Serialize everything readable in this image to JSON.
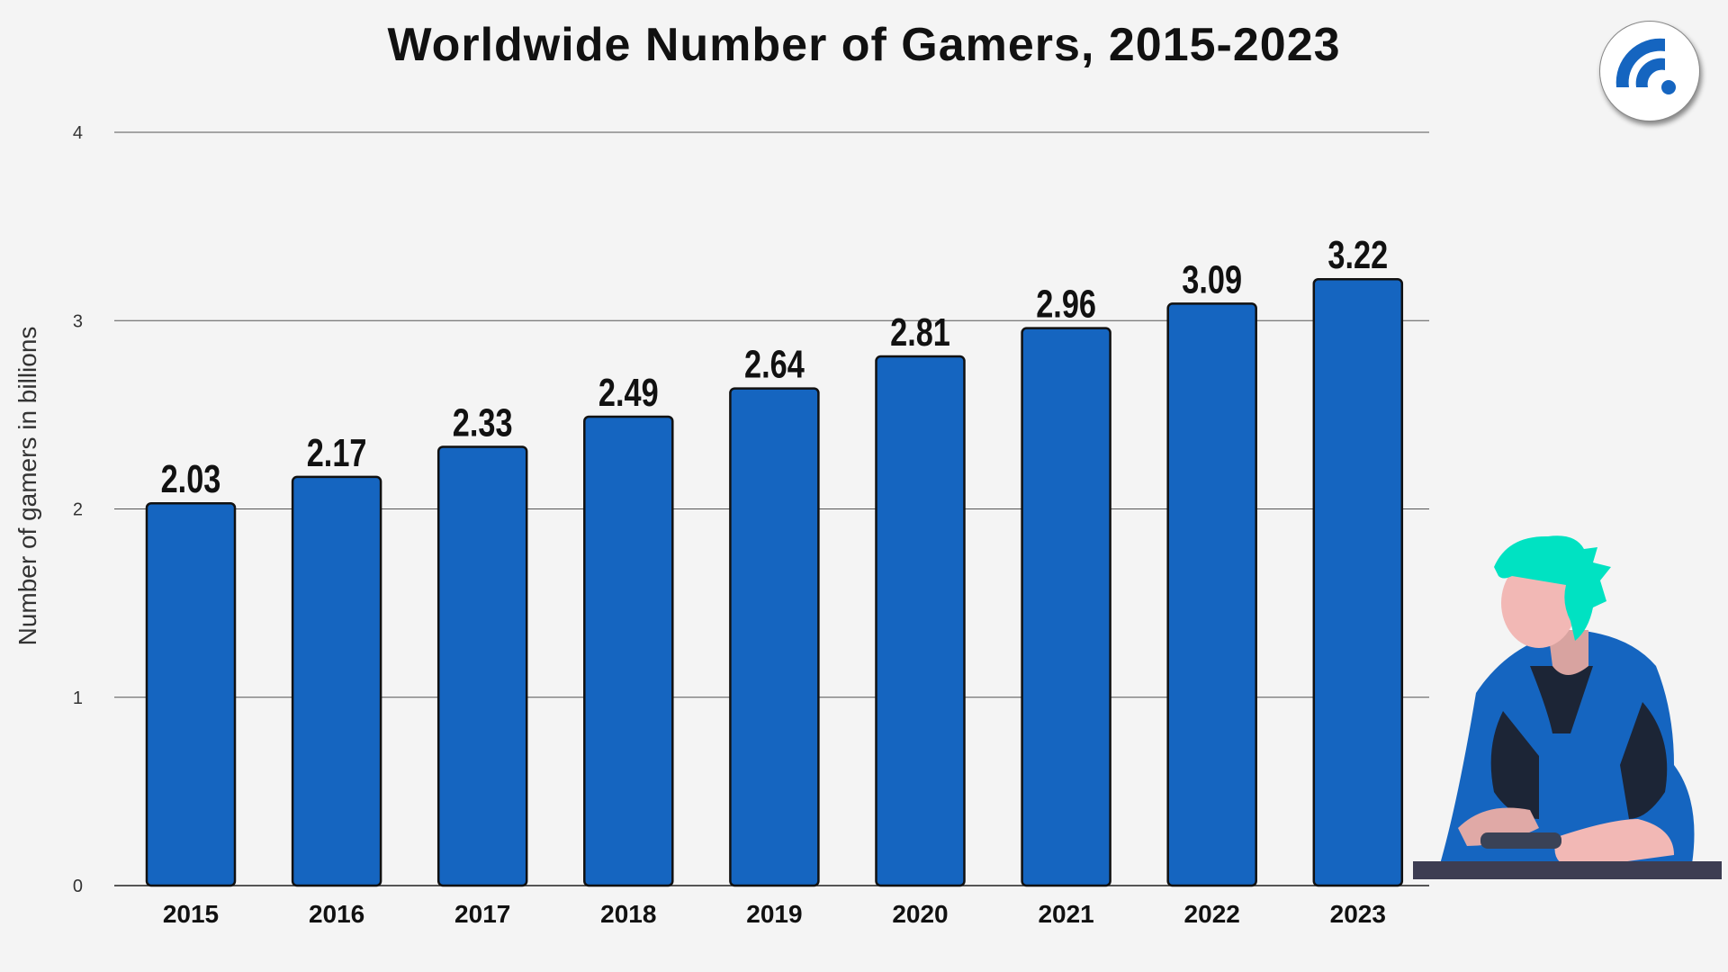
{
  "chart_data": {
    "type": "bar",
    "title": "Worldwide Number of Gamers, 2015-2023",
    "xlabel": "",
    "ylabel": "Number of gamers in billions",
    "categories": [
      "2015",
      "2016",
      "2017",
      "2018",
      "2019",
      "2020",
      "2021",
      "2022",
      "2023"
    ],
    "values": [
      2.03,
      2.17,
      2.33,
      2.49,
      2.64,
      2.81,
      2.96,
      3.09,
      3.22
    ],
    "data_labels": [
      "2.03",
      "2.17",
      "2.33",
      "2.49",
      "2.64",
      "2.81",
      "2.96",
      "3.09",
      "3.22"
    ],
    "ylim": [
      0,
      4
    ],
    "yticks": [
      "0",
      "1",
      "2",
      "3",
      "4"
    ],
    "grid": true,
    "bar_color": "#1565c0",
    "legend": "none"
  },
  "logo": {
    "icon": "rss-feed-icon",
    "color": "#1565c0"
  },
  "illustration": {
    "icon": "gamer-with-controller-illustration"
  }
}
